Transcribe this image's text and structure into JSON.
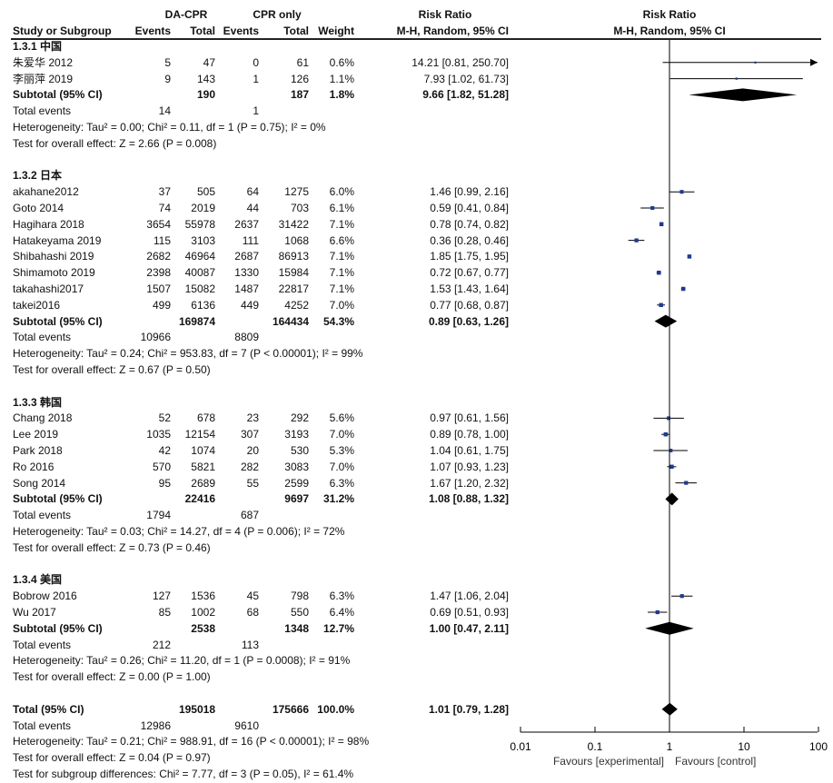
{
  "header": {
    "group1": "DA-CPR",
    "group2": "CPR only",
    "rr_title": "Risk Ratio",
    "study": "Study or Subgroup",
    "events": "Events",
    "total": "Total",
    "weight": "Weight",
    "method": "M-H, Random, 95% CI",
    "plot_title": "Risk Ratio",
    "plot_method": "M-H, Random, 95% CI"
  },
  "chart_data": {
    "type": "forest",
    "xscale": "log",
    "xlim": [
      0.01,
      100
    ],
    "ticks": [
      "0.01",
      "0.1",
      "1",
      "10",
      "100"
    ],
    "tick_values": [
      0.01,
      0.1,
      1,
      10,
      100
    ],
    "xlabel_left": "Favours [experimental]",
    "xlabel_right": "Favours [control]",
    "rows": [
      {
        "type": "group",
        "label": "1.3.1 中国"
      },
      {
        "type": "study",
        "label": "朱爱华 2012",
        "e1": "5",
        "n1": "47",
        "e2": "0",
        "n2": "61",
        "w": "0.6%",
        "rr_text": "14.21 [0.81, 250.70]",
        "rr": 14.21,
        "lo": 0.81,
        "hi": 250.7,
        "weight": 0.6
      },
      {
        "type": "study",
        "label": "李丽萍 2019",
        "e1": "9",
        "n1": "143",
        "e2": "1",
        "n2": "126",
        "w": "1.1%",
        "rr_text": "7.93 [1.02, 61.73]",
        "rr": 7.93,
        "lo": 1.02,
        "hi": 61.73,
        "weight": 1.1
      },
      {
        "type": "subtotal",
        "label": "Subtotal (95% CI)",
        "n1": "190",
        "n2": "187",
        "w": "1.8%",
        "rr_text": "9.66 [1.82, 51.28]",
        "rr": 9.66,
        "lo": 1.82,
        "hi": 51.28
      },
      {
        "type": "events",
        "label": "Total events",
        "e1": "14",
        "e2": "1"
      },
      {
        "type": "note",
        "label": "Heterogeneity: Tau² = 0.00; Chi² = 0.11, df = 1 (P = 0.75); I² = 0%"
      },
      {
        "type": "note",
        "label": "Test for overall effect: Z = 2.66 (P = 0.008)"
      },
      {
        "type": "blank"
      },
      {
        "type": "group",
        "label": "1.3.2 日本"
      },
      {
        "type": "study",
        "label": "akahane2012",
        "e1": "37",
        "n1": "505",
        "e2": "64",
        "n2": "1275",
        "w": "6.0%",
        "rr_text": "1.46 [0.99, 2.16]",
        "rr": 1.46,
        "lo": 0.99,
        "hi": 2.16,
        "weight": 6.0
      },
      {
        "type": "study",
        "label": "Goto 2014",
        "e1": "74",
        "n1": "2019",
        "e2": "44",
        "n2": "703",
        "w": "6.1%",
        "rr_text": "0.59 [0.41, 0.84]",
        "rr": 0.59,
        "lo": 0.41,
        "hi": 0.84,
        "weight": 6.1
      },
      {
        "type": "study",
        "label": "Hagihara 2018",
        "e1": "3654",
        "n1": "55978",
        "e2": "2637",
        "n2": "31422",
        "w": "7.1%",
        "rr_text": "0.78 [0.74, 0.82]",
        "rr": 0.78,
        "lo": 0.74,
        "hi": 0.82,
        "weight": 7.1
      },
      {
        "type": "study",
        "label": "Hatakeyama 2019",
        "e1": "115",
        "n1": "3103",
        "e2": "111",
        "n2": "1068",
        "w": "6.6%",
        "rr_text": "0.36 [0.28, 0.46]",
        "rr": 0.36,
        "lo": 0.28,
        "hi": 0.46,
        "weight": 6.6
      },
      {
        "type": "study",
        "label": "Shibahashi 2019",
        "e1": "2682",
        "n1": "46964",
        "e2": "2687",
        "n2": "86913",
        "w": "7.1%",
        "rr_text": "1.85 [1.75, 1.95]",
        "rr": 1.85,
        "lo": 1.75,
        "hi": 1.95,
        "weight": 7.1
      },
      {
        "type": "study",
        "label": "Shimamoto 2019",
        "e1": "2398",
        "n1": "40087",
        "e2": "1330",
        "n2": "15984",
        "w": "7.1%",
        "rr_text": "0.72 [0.67, 0.77]",
        "rr": 0.72,
        "lo": 0.67,
        "hi": 0.77,
        "weight": 7.1
      },
      {
        "type": "study",
        "label": "takahashi2017",
        "e1": "1507",
        "n1": "15082",
        "e2": "1487",
        "n2": "22817",
        "w": "7.1%",
        "rr_text": "1.53 [1.43, 1.64]",
        "rr": 1.53,
        "lo": 1.43,
        "hi": 1.64,
        "weight": 7.1
      },
      {
        "type": "study",
        "label": "takei2016",
        "e1": "499",
        "n1": "6136",
        "e2": "449",
        "n2": "4252",
        "w": "7.0%",
        "rr_text": "0.77 [0.68, 0.87]",
        "rr": 0.77,
        "lo": 0.68,
        "hi": 0.87,
        "weight": 7.0
      },
      {
        "type": "subtotal",
        "label": "Subtotal (95% CI)",
        "n1": "169874",
        "n2": "164434",
        "w": "54.3%",
        "rr_text": "0.89 [0.63, 1.26]",
        "rr": 0.89,
        "lo": 0.63,
        "hi": 1.26
      },
      {
        "type": "events",
        "label": "Total events",
        "e1": "10966",
        "e2": "8809"
      },
      {
        "type": "note",
        "label": "Heterogeneity: Tau² = 0.24; Chi² = 953.83, df = 7 (P < 0.00001); I² = 99%"
      },
      {
        "type": "note",
        "label": "Test for overall effect: Z = 0.67 (P = 0.50)"
      },
      {
        "type": "blank"
      },
      {
        "type": "group",
        "label": "1.3.3 韩国"
      },
      {
        "type": "study",
        "label": "Chang 2018",
        "e1": "52",
        "n1": "678",
        "e2": "23",
        "n2": "292",
        "w": "5.6%",
        "rr_text": "0.97 [0.61, 1.56]",
        "rr": 0.97,
        "lo": 0.61,
        "hi": 1.56,
        "weight": 5.6
      },
      {
        "type": "study",
        "label": "Lee 2019",
        "e1": "1035",
        "n1": "12154",
        "e2": "307",
        "n2": "3193",
        "w": "7.0%",
        "rr_text": "0.89 [0.78, 1.00]",
        "rr": 0.89,
        "lo": 0.78,
        "hi": 1.0,
        "weight": 7.0
      },
      {
        "type": "study",
        "label": "Park 2018",
        "e1": "42",
        "n1": "1074",
        "e2": "20",
        "n2": "530",
        "w": "5.3%",
        "rr_text": "1.04 [0.61, 1.75]",
        "rr": 1.04,
        "lo": 0.61,
        "hi": 1.75,
        "weight": 5.3
      },
      {
        "type": "study",
        "label": "Ro 2016",
        "e1": "570",
        "n1": "5821",
        "e2": "282",
        "n2": "3083",
        "w": "7.0%",
        "rr_text": "1.07 [0.93, 1.23]",
        "rr": 1.07,
        "lo": 0.93,
        "hi": 1.23,
        "weight": 7.0
      },
      {
        "type": "study",
        "label": "Song 2014",
        "e1": "95",
        "n1": "2689",
        "e2": "55",
        "n2": "2599",
        "w": "6.3%",
        "rr_text": "1.67 [1.20, 2.32]",
        "rr": 1.67,
        "lo": 1.2,
        "hi": 2.32,
        "weight": 6.3
      },
      {
        "type": "subtotal",
        "label": "Subtotal (95% CI)",
        "n1": "22416",
        "n2": "9697",
        "w": "31.2%",
        "rr_text": "1.08 [0.88, 1.32]",
        "rr": 1.08,
        "lo": 0.88,
        "hi": 1.32
      },
      {
        "type": "events",
        "label": "Total events",
        "e1": "1794",
        "e2": "687"
      },
      {
        "type": "note",
        "label": "Heterogeneity: Tau² = 0.03; Chi² = 14.27, df = 4 (P = 0.006); I² = 72%"
      },
      {
        "type": "note",
        "label": "Test for overall effect: Z = 0.73 (P = 0.46)"
      },
      {
        "type": "blank"
      },
      {
        "type": "group",
        "label": "1.3.4 美国"
      },
      {
        "type": "study",
        "label": "Bobrow 2016",
        "e1": "127",
        "n1": "1536",
        "e2": "45",
        "n2": "798",
        "w": "6.3%",
        "rr_text": "1.47 [1.06, 2.04]",
        "rr": 1.47,
        "lo": 1.06,
        "hi": 2.04,
        "weight": 6.3
      },
      {
        "type": "study",
        "label": "Wu 2017",
        "e1": "85",
        "n1": "1002",
        "e2": "68",
        "n2": "550",
        "w": "6.4%",
        "rr_text": "0.69 [0.51, 0.93]",
        "rr": 0.69,
        "lo": 0.51,
        "hi": 0.93,
        "weight": 6.4
      },
      {
        "type": "subtotal",
        "label": "Subtotal (95% CI)",
        "n1": "2538",
        "n2": "1348",
        "w": "12.7%",
        "rr_text": "1.00 [0.47, 2.11]",
        "rr": 1.0,
        "lo": 0.47,
        "hi": 2.11
      },
      {
        "type": "events",
        "label": "Total events",
        "e1": "212",
        "e2": "113"
      },
      {
        "type": "note",
        "label": "Heterogeneity: Tau² = 0.26; Chi² = 11.20, df = 1 (P = 0.0008); I² = 91%"
      },
      {
        "type": "note",
        "label": "Test for overall effect: Z = 0.00 (P = 1.00)"
      },
      {
        "type": "blank"
      },
      {
        "type": "subtotal",
        "label": "Total (95% CI)",
        "n1": "195018",
        "n2": "175666",
        "w": "100.0%",
        "rr_text": "1.01 [0.79, 1.28]",
        "rr": 1.01,
        "lo": 0.79,
        "hi": 1.28
      },
      {
        "type": "events",
        "label": "Total events",
        "e1": "12986",
        "e2": "9610"
      },
      {
        "type": "note",
        "label": "Heterogeneity: Tau² = 0.21; Chi² = 988.91, df = 16 (P < 0.00001); I² = 98%"
      },
      {
        "type": "note",
        "label": "Test for overall effect: Z = 0.04 (P = 0.97)"
      },
      {
        "type": "note",
        "label": "Test for subgroup differences: Chi² = 7.77, df = 3 (P = 0.05), I² = 61.4%"
      }
    ]
  }
}
